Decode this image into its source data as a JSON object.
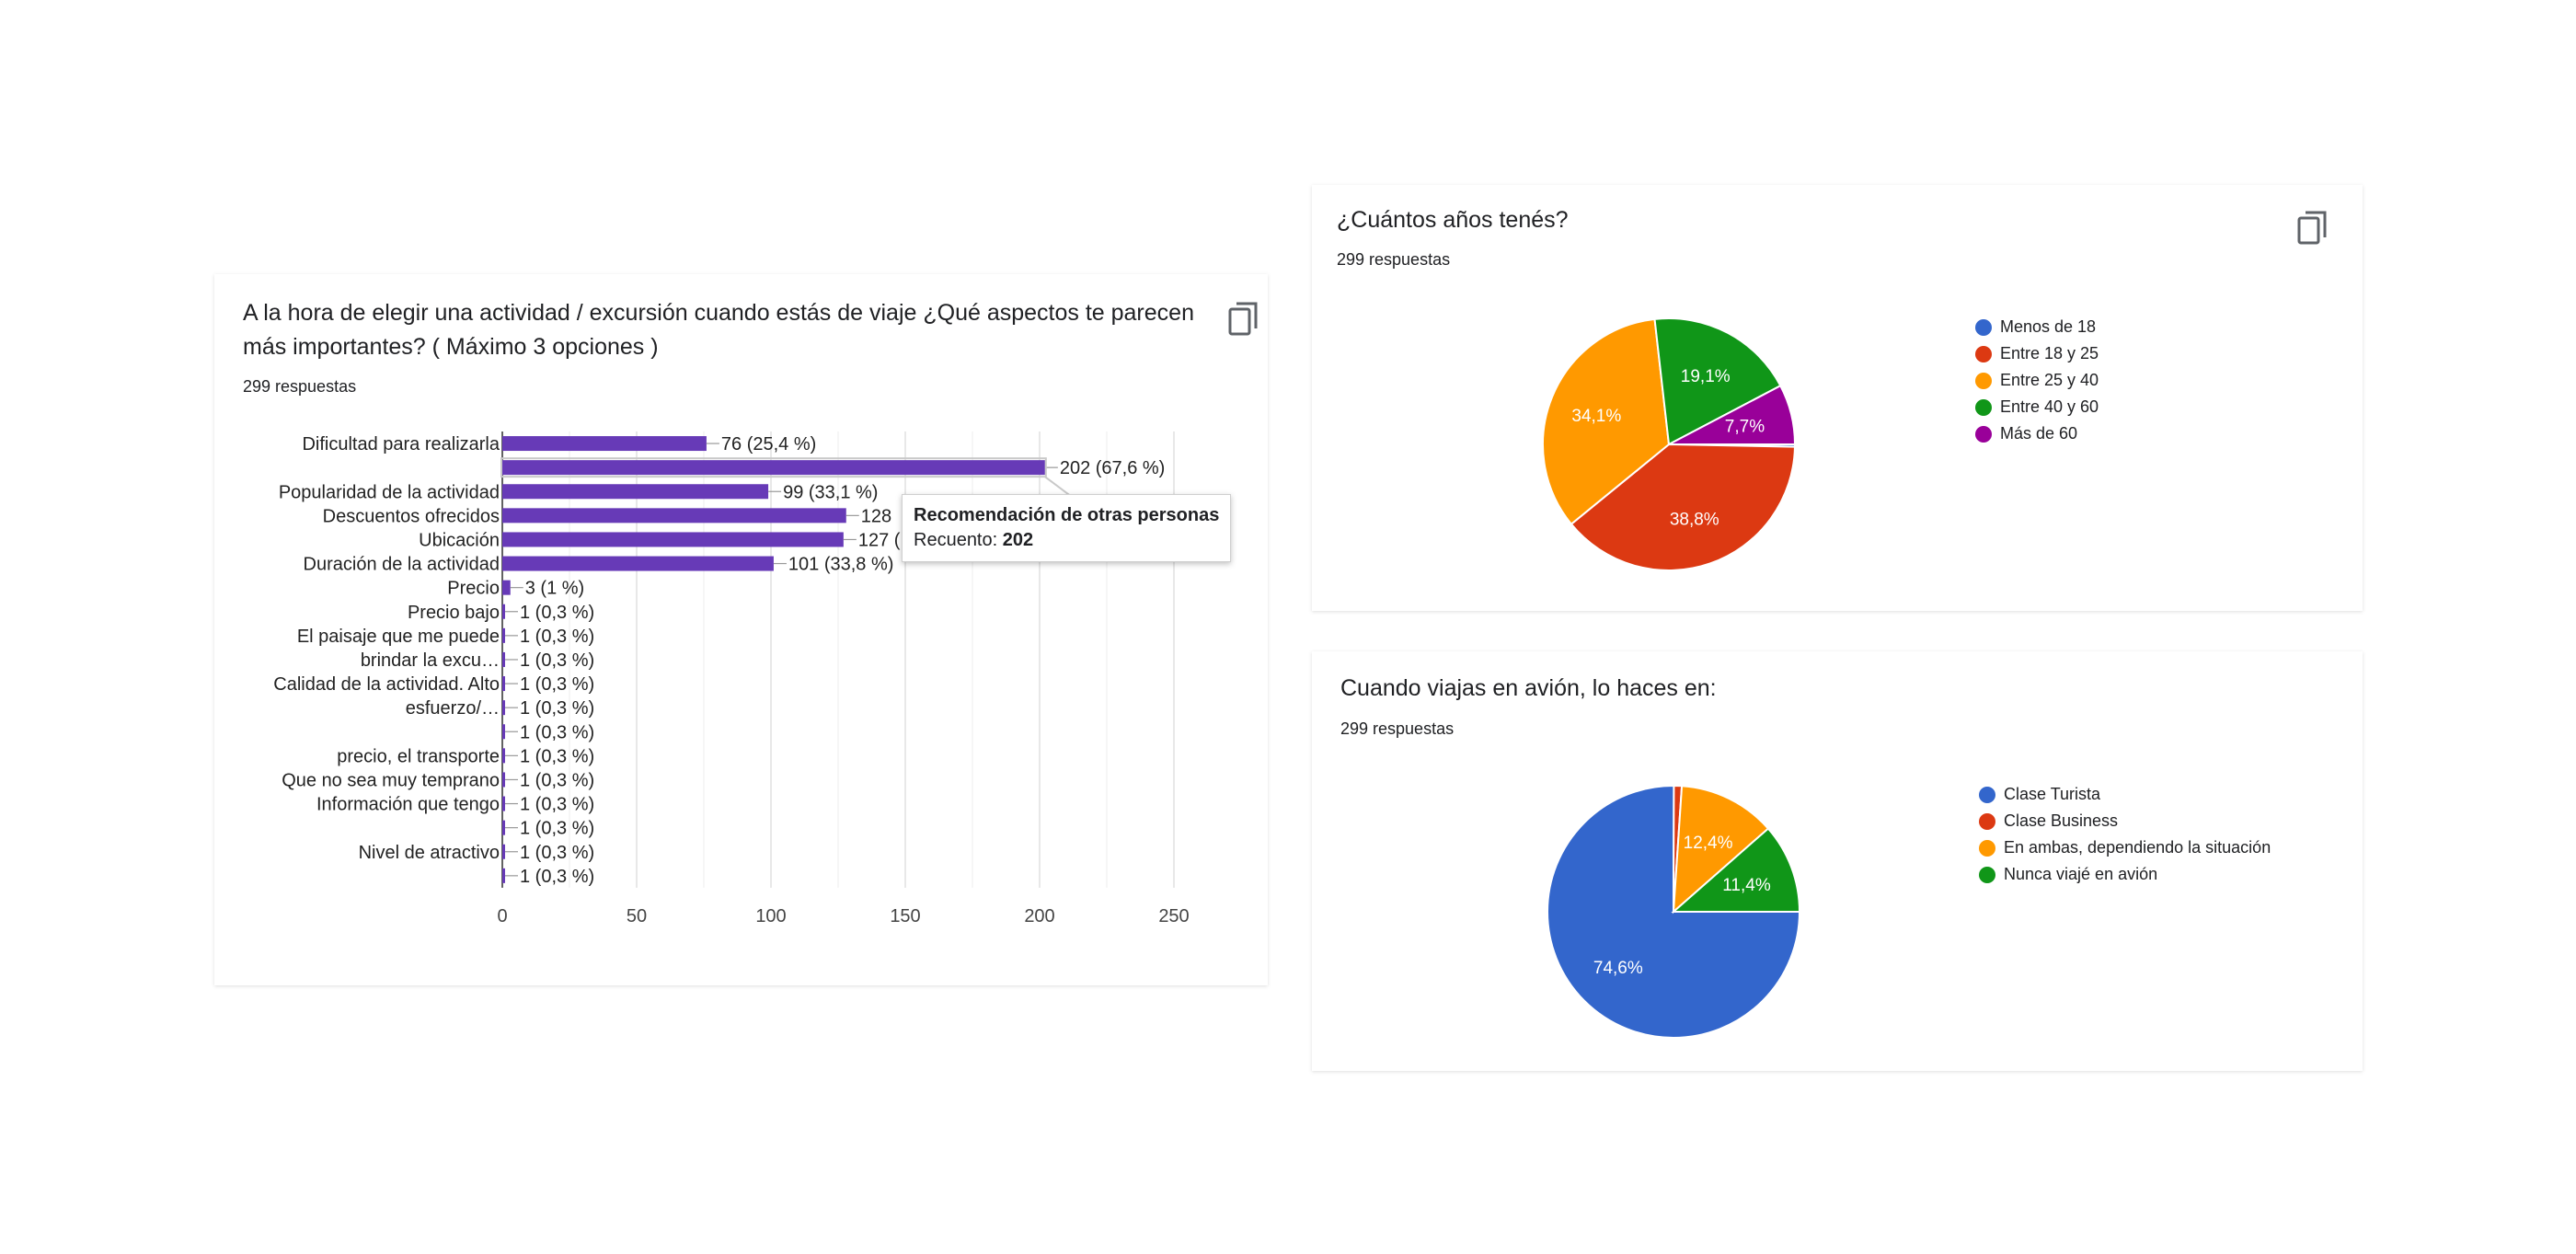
{
  "copy_icon": "copy-icon",
  "cards": {
    "activity": {
      "title_line1": "A la hora de elegir una actividad / excursión cuando estás de viaje ¿Qué aspectos te parecen",
      "title_line2": "más importantes? ( Máximo 3 opciones )",
      "responses": "299 respuestas"
    },
    "age": {
      "title": "¿Cuántos años tenés?",
      "responses": "299 respuestas"
    },
    "plane": {
      "title": "Cuando viajas en avión, lo haces en:",
      "responses": "299 respuestas"
    }
  },
  "tooltip": {
    "title": "Recomendación de otras personas",
    "count_label": "Recuento:",
    "count_value": "202"
  },
  "chart_data": [
    {
      "type": "bar",
      "orientation": "horizontal",
      "color": "#673ab7",
      "categories": [
        "Dificultad para realizarla",
        "",
        "Popularidad de la actividad",
        "Descuentos ofrecidos",
        "Ubicación",
        "Duración de la actividad",
        "Precio",
        "Precio bajo",
        "",
        "El paisaje que me puede brindar la excu…",
        "",
        "Calidad de la actividad. Alto esfuerzo/…",
        "",
        "precio, el transporte",
        "Que no sea muy temprano",
        "Información que tengo",
        "",
        "Nivel de atractivo",
        ""
      ],
      "values": [
        76,
        202,
        99,
        128,
        127,
        101,
        3,
        1,
        1,
        1,
        1,
        1,
        1,
        1,
        1,
        1,
        1,
        1,
        1
      ],
      "data_labels": [
        "76 (25,4 %)",
        "202 (67,6 %)",
        "99 (33,1 %)",
        "128",
        "127 (",
        "101 (33,8 %)",
        "3 (1 %)",
        "1 (0,3 %)",
        "1 (0,3 %)",
        "1 (0,3 %)",
        "1 (0,3 %)",
        "1 (0,3 %)",
        "1 (0,3 %)",
        "1 (0,3 %)",
        "1 (0,3 %)",
        "1 (0,3 %)",
        "1 (0,3 %)",
        "1 (0,3 %)",
        "1 (0,3 %)"
      ],
      "xticks": [
        "0",
        "50",
        "100",
        "150",
        "200",
        "250"
      ],
      "xlim": [
        0,
        250
      ],
      "grid": true
    },
    {
      "type": "pie",
      "labels": [
        "Menos de 18",
        "Entre 18 y 25",
        "Entre 25 y 40",
        "Entre 40 y 60",
        "Más de 60"
      ],
      "values": [
        0.3,
        38.8,
        34.1,
        19.1,
        7.7
      ],
      "slice_labels": [
        "",
        "38,8%",
        "34,1%",
        "19,1%",
        "7,7%"
      ],
      "colors": [
        "#3366cc",
        "#dc3912",
        "#ff9900",
        "#109618",
        "#990099"
      ],
      "legend": "right"
    },
    {
      "type": "pie",
      "labels": [
        "Clase Turista",
        "Clase Business",
        "En ambas, dependiendo la situación",
        "Nunca viajé en avión"
      ],
      "values": [
        74.6,
        1.0,
        12.4,
        11.4
      ],
      "slice_labels": [
        "74,6%",
        "",
        "12,4%",
        "11,4%"
      ],
      "colors": [
        "#3366cc",
        "#dc3912",
        "#ff9900",
        "#109618"
      ],
      "legend": "right"
    }
  ]
}
